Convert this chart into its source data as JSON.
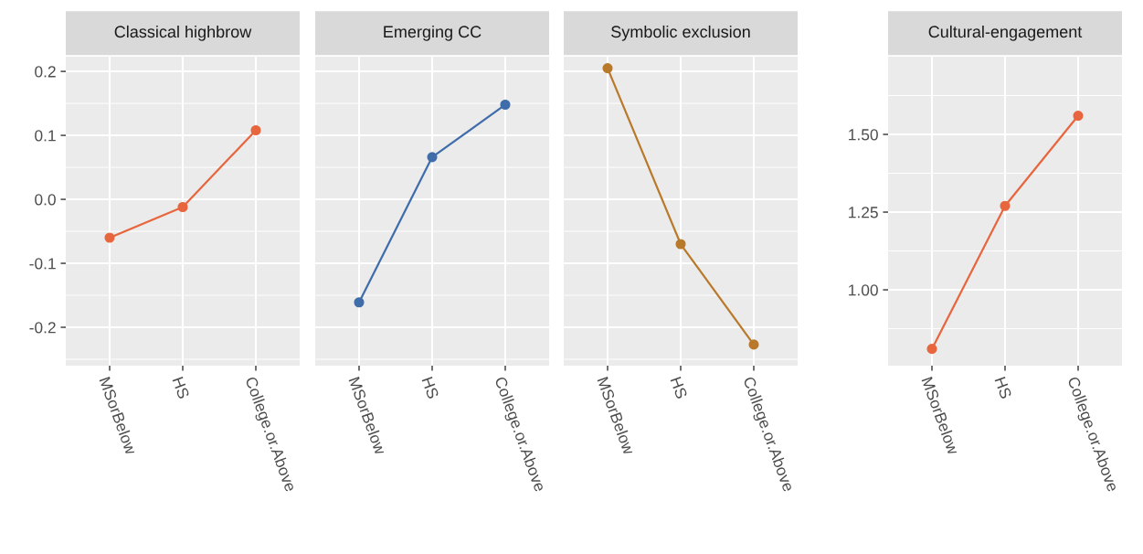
{
  "chart_data": [
    {
      "type": "line",
      "title": "Classical highbrow",
      "categories": [
        "MSorBelow",
        "HS",
        "College.or.Above"
      ],
      "series": [
        {
          "color": "#e8663d",
          "values": [
            -0.06,
            -0.012,
            0.108
          ]
        }
      ],
      "ylim": [
        -0.26,
        0.223
      ],
      "yticks": [
        -0.2,
        -0.1,
        {
          "value": 0.0,
          "label": "0.0"
        },
        0.1,
        0.2
      ],
      "grid": true,
      "marker": "circle",
      "line_style": "solid"
    },
    {
      "type": "line",
      "title": "Emerging CC",
      "categories": [
        "MSorBelow",
        "HS",
        "College.or.Above"
      ],
      "series": [
        {
          "color": "#3f6daa",
          "values": [
            -0.161,
            0.066,
            0.148
          ]
        }
      ],
      "ylim": [
        -0.26,
        0.223
      ],
      "yticks": [
        -0.2,
        -0.1,
        0,
        0.1,
        0.2
      ],
      "tick_labels": "x",
      "grid": true,
      "marker": "circle",
      "line_style": "solid"
    },
    {
      "type": "line",
      "title": "Symbolic exclusion",
      "categories": [
        "MSorBelow",
        "HS",
        "College.or.Above"
      ],
      "series": [
        {
          "color": "#b8792a",
          "values": [
            0.205,
            -0.07,
            -0.227
          ]
        }
      ],
      "ylim": [
        -0.26,
        0.223
      ],
      "yticks": [
        -0.2,
        -0.1,
        0,
        0.1,
        0.2
      ],
      "tick_labels": "x",
      "grid": true,
      "marker": "circle",
      "line_style": "solid"
    },
    {
      "type": "line",
      "title": "Cultural-engagement",
      "categories": [
        "MSorBelow",
        "HS",
        "College.or.Above"
      ],
      "series": [
        {
          "color": "#e8663d",
          "values": [
            0.81,
            1.27,
            1.56
          ]
        }
      ],
      "ylim": [
        0.756,
        1.75
      ],
      "yticks": [
        {
          "value": 1.0,
          "label": "1.00"
        },
        {
          "value": 1.25,
          "label": "1.25"
        },
        {
          "value": 1.5,
          "label": "1.50"
        }
      ],
      "grid": true,
      "marker": "circle",
      "line_style": "solid"
    }
  ]
}
